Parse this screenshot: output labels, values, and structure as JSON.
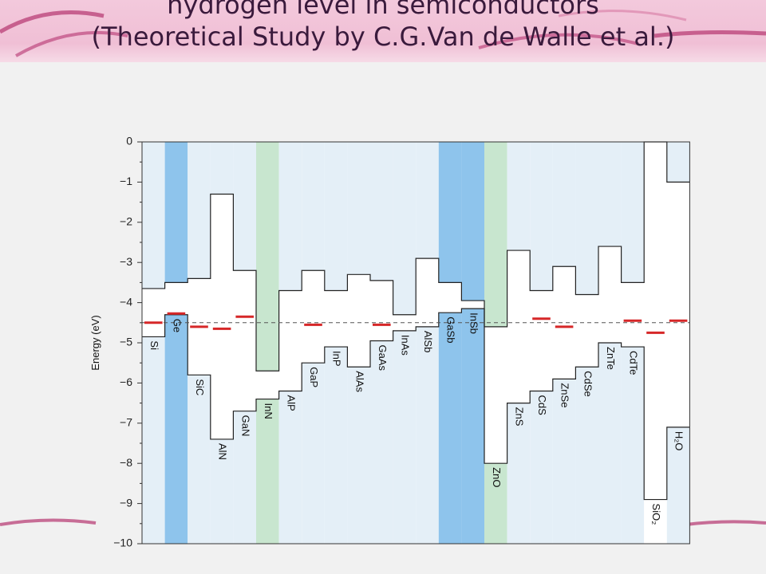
{
  "slide": {
    "title": "hydrogen level in semiconductors\n(Theoretical Study by C.G.Van de Walle et al.)",
    "colors": {
      "banner": "#f0c4d8",
      "accent": "#b5346f"
    }
  },
  "chart_data": {
    "type": "bar",
    "title": "",
    "xlabel": "",
    "ylabel": "Energy (eV)",
    "ylim": [
      -10,
      0
    ],
    "yticks": [
      "0",
      "−1",
      "−2",
      "−3",
      "−4",
      "−5",
      "−6",
      "−7",
      "−8",
      "−9",
      "−10"
    ],
    "reference_line": -4.5,
    "grid": false,
    "materials": [
      {
        "name": "Si",
        "cbm": -3.65,
        "vbm": -4.85,
        "h": -4.5,
        "shade": "light"
      },
      {
        "name": "Ge",
        "cbm": -3.5,
        "vbm": -4.3,
        "h": -4.27,
        "shade": "blue"
      },
      {
        "name": "SiC",
        "cbm": -3.4,
        "vbm": -5.8,
        "h": -4.6,
        "shade": "light"
      },
      {
        "name": "AlN",
        "cbm": -1.3,
        "vbm": -7.4,
        "h": -4.65,
        "shade": "light"
      },
      {
        "name": "GaN",
        "cbm": -3.2,
        "vbm": -6.7,
        "h": -4.35,
        "shade": "light"
      },
      {
        "name": "InN",
        "cbm": -5.7,
        "vbm": -6.4,
        "h": null,
        "shade": "green"
      },
      {
        "name": "AlP",
        "cbm": -3.7,
        "vbm": -6.2,
        "h": null,
        "shade": "light"
      },
      {
        "name": "GaP",
        "cbm": -3.2,
        "vbm": -5.5,
        "h": -4.55,
        "shade": "light"
      },
      {
        "name": "InP",
        "cbm": -3.7,
        "vbm": -5.1,
        "h": null,
        "shade": "light"
      },
      {
        "name": "AlAs",
        "cbm": -3.3,
        "vbm": -5.6,
        "h": null,
        "shade": "light"
      },
      {
        "name": "GaAs",
        "cbm": -3.45,
        "vbm": -4.95,
        "h": -4.55,
        "shade": "light"
      },
      {
        "name": "InAs",
        "cbm": -4.3,
        "vbm": -4.7,
        "h": null,
        "shade": "light"
      },
      {
        "name": "AlSb",
        "cbm": -2.9,
        "vbm": -4.6,
        "h": null,
        "shade": "light"
      },
      {
        "name": "GaSb",
        "cbm": -3.5,
        "vbm": -4.25,
        "h": null,
        "shade": "blue"
      },
      {
        "name": "InSb",
        "cbm": -3.95,
        "vbm": -4.15,
        "h": null,
        "shade": "blue"
      },
      {
        "name": "ZnO",
        "cbm": -4.6,
        "vbm": -8.0,
        "h": null,
        "shade": "green"
      },
      {
        "name": "ZnS",
        "cbm": -2.7,
        "vbm": -6.5,
        "h": null,
        "shade": "light"
      },
      {
        "name": "CdS",
        "cbm": -3.7,
        "vbm": -6.2,
        "h": -4.4,
        "shade": "light"
      },
      {
        "name": "ZnSe",
        "cbm": -3.1,
        "vbm": -5.9,
        "h": -4.6,
        "shade": "light"
      },
      {
        "name": "CdSe",
        "cbm": -3.8,
        "vbm": -5.6,
        "h": null,
        "shade": "light"
      },
      {
        "name": "ZnTe",
        "cbm": -2.6,
        "vbm": -5.0,
        "h": null,
        "shade": "light"
      },
      {
        "name": "CdTe",
        "cbm": -3.5,
        "vbm": -5.1,
        "h": -4.45,
        "shade": "light"
      },
      {
        "name": "SiO₂",
        "cbm": 0.0,
        "vbm": -8.9,
        "h": -4.75,
        "shade": "white"
      },
      {
        "name": "H₂O",
        "cbm": -1.0,
        "vbm": -7.1,
        "h": -4.45,
        "shade": "light"
      }
    ]
  }
}
